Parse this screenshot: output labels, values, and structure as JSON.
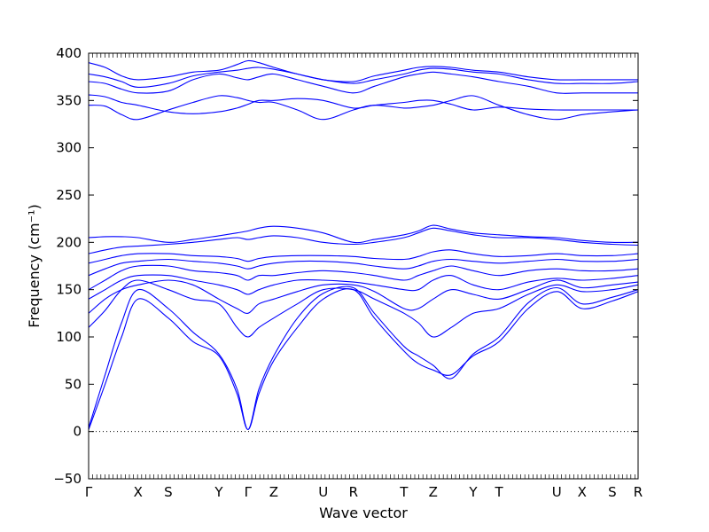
{
  "chart_data": {
    "type": "line",
    "title": "",
    "xlabel": "Wave vector",
    "ylabel": "Frequency (cm⁻¹)",
    "ylim": [
      -50,
      400
    ],
    "yticks": [
      -50,
      0,
      50,
      100,
      150,
      200,
      250,
      300,
      350,
      400
    ],
    "grid": false,
    "legend": "none",
    "line_color": "#0000ff",
    "zero_line": {
      "y": 0,
      "style": "dotted",
      "color": "#000000"
    },
    "xticks": [
      {
        "label": "Γ",
        "pos": 0.0
      },
      {
        "label": "X",
        "pos": 0.09
      },
      {
        "label": "S",
        "pos": 0.145
      },
      {
        "label": "Y",
        "pos": 0.237
      },
      {
        "label": "Γ",
        "pos": 0.29
      },
      {
        "label": "Z",
        "pos": 0.337
      },
      {
        "label": "U",
        "pos": 0.427
      },
      {
        "label": "R",
        "pos": 0.482
      },
      {
        "label": "T",
        "pos": 0.574
      },
      {
        "label": "Z",
        "pos": 0.627
      },
      {
        "label": "Y",
        "pos": 0.7
      },
      {
        "label": "T",
        "pos": 0.747
      },
      {
        "label": "U",
        "pos": 0.852
      },
      {
        "label": "X",
        "pos": 0.898
      },
      {
        "label": "S",
        "pos": 0.953
      },
      {
        "label": "R",
        "pos": 1.0
      }
    ],
    "series": [
      {
        "x": [
          0,
          0.03,
          0.06,
          0.09,
          0.145,
          0.19,
          0.237,
          0.27,
          0.29,
          0.31,
          0.337,
          0.38,
          0.427,
          0.482,
          0.52,
          0.574,
          0.6,
          0.627,
          0.66,
          0.7,
          0.747,
          0.8,
          0.852,
          0.898,
          0.953,
          1.0
        ],
        "y": [
          2,
          50,
          100,
          140,
          120,
          95,
          80,
          40,
          2,
          40,
          75,
          110,
          140,
          150,
          120,
          85,
          72,
          65,
          60,
          80,
          95,
          130,
          148,
          130,
          138,
          148
        ]
      },
      {
        "x": [
          0,
          0.03,
          0.06,
          0.09,
          0.145,
          0.19,
          0.237,
          0.27,
          0.29,
          0.31,
          0.337,
          0.38,
          0.427,
          0.482,
          0.52,
          0.574,
          0.6,
          0.627,
          0.66,
          0.7,
          0.747,
          0.8,
          0.852,
          0.898,
          0.953,
          1.0
        ],
        "y": [
          4,
          60,
          115,
          150,
          130,
          105,
          82,
          45,
          2,
          45,
          80,
          120,
          146,
          152,
          125,
          90,
          80,
          70,
          56,
          82,
          100,
          136,
          152,
          135,
          142,
          150
        ]
      },
      {
        "x": [
          0,
          0.03,
          0.06,
          0.09,
          0.145,
          0.19,
          0.237,
          0.27,
          0.29,
          0.31,
          0.337,
          0.38,
          0.427,
          0.482,
          0.52,
          0.574,
          0.6,
          0.627,
          0.66,
          0.7,
          0.747,
          0.8,
          0.852,
          0.898,
          0.953,
          1.0
        ],
        "y": [
          110,
          128,
          150,
          160,
          150,
          140,
          135,
          110,
          100,
          110,
          120,
          135,
          150,
          150,
          140,
          125,
          115,
          100,
          110,
          125,
          130,
          145,
          155,
          148,
          150,
          155
        ]
      },
      {
        "x": [
          0,
          0.03,
          0.06,
          0.09,
          0.145,
          0.19,
          0.237,
          0.27,
          0.29,
          0.31,
          0.337,
          0.38,
          0.427,
          0.482,
          0.52,
          0.574,
          0.6,
          0.627,
          0.66,
          0.7,
          0.747,
          0.8,
          0.852,
          0.898,
          0.953,
          1.0
        ],
        "y": [
          125,
          140,
          150,
          155,
          160,
          155,
          140,
          130,
          125,
          135,
          140,
          148,
          155,
          155,
          148,
          130,
          130,
          140,
          150,
          145,
          140,
          150,
          160,
          152,
          155,
          158
        ]
      },
      {
        "x": [
          0,
          0.03,
          0.06,
          0.09,
          0.145,
          0.19,
          0.237,
          0.27,
          0.29,
          0.31,
          0.337,
          0.38,
          0.427,
          0.482,
          0.52,
          0.574,
          0.6,
          0.627,
          0.66,
          0.7,
          0.747,
          0.8,
          0.852,
          0.898,
          0.953,
          1.0
        ],
        "y": [
          140,
          150,
          160,
          165,
          165,
          160,
          155,
          150,
          145,
          150,
          155,
          160,
          160,
          158,
          155,
          150,
          150,
          160,
          165,
          155,
          150,
          158,
          162,
          160,
          162,
          165
        ]
      },
      {
        "x": [
          0,
          0.03,
          0.06,
          0.09,
          0.145,
          0.19,
          0.237,
          0.27,
          0.29,
          0.31,
          0.337,
          0.38,
          0.427,
          0.482,
          0.52,
          0.574,
          0.6,
          0.627,
          0.66,
          0.7,
          0.747,
          0.8,
          0.852,
          0.898,
          0.953,
          1.0
        ],
        "y": [
          150,
          160,
          170,
          175,
          175,
          170,
          168,
          165,
          160,
          165,
          165,
          168,
          170,
          168,
          165,
          160,
          165,
          170,
          175,
          170,
          165,
          170,
          172,
          170,
          170,
          172
        ]
      },
      {
        "x": [
          0,
          0.03,
          0.06,
          0.09,
          0.145,
          0.19,
          0.237,
          0.27,
          0.29,
          0.31,
          0.337,
          0.38,
          0.427,
          0.482,
          0.52,
          0.574,
          0.6,
          0.627,
          0.66,
          0.7,
          0.747,
          0.8,
          0.852,
          0.898,
          0.953,
          1.0
        ],
        "y": [
          165,
          172,
          178,
          180,
          182,
          180,
          178,
          175,
          172,
          175,
          178,
          180,
          180,
          178,
          175,
          172,
          175,
          180,
          182,
          180,
          178,
          180,
          182,
          180,
          180,
          182
        ]
      },
      {
        "x": [
          0,
          0.03,
          0.06,
          0.09,
          0.145,
          0.19,
          0.237,
          0.27,
          0.29,
          0.31,
          0.337,
          0.38,
          0.427,
          0.482,
          0.52,
          0.574,
          0.6,
          0.627,
          0.66,
          0.7,
          0.747,
          0.8,
          0.852,
          0.898,
          0.953,
          1.0
        ],
        "y": [
          178,
          182,
          186,
          188,
          188,
          186,
          185,
          183,
          180,
          183,
          185,
          186,
          186,
          185,
          183,
          182,
          185,
          190,
          192,
          188,
          185,
          186,
          188,
          186,
          186,
          188
        ]
      },
      {
        "x": [
          0,
          0.03,
          0.06,
          0.09,
          0.145,
          0.19,
          0.237,
          0.27,
          0.29,
          0.31,
          0.337,
          0.38,
          0.427,
          0.482,
          0.52,
          0.574,
          0.6,
          0.627,
          0.66,
          0.7,
          0.747,
          0.8,
          0.852,
          0.898,
          0.953,
          1.0
        ],
        "y": [
          188,
          192,
          195,
          196,
          198,
          200,
          203,
          205,
          203,
          205,
          207,
          205,
          200,
          198,
          200,
          205,
          210,
          215,
          212,
          208,
          205,
          205,
          203,
          200,
          198,
          197
        ]
      },
      {
        "x": [
          0,
          0.03,
          0.06,
          0.09,
          0.145,
          0.19,
          0.237,
          0.27,
          0.29,
          0.31,
          0.337,
          0.38,
          0.427,
          0.482,
          0.52,
          0.574,
          0.6,
          0.627,
          0.66,
          0.7,
          0.747,
          0.8,
          0.852,
          0.898,
          0.953,
          1.0
        ],
        "y": [
          205,
          206,
          206,
          205,
          200,
          203,
          207,
          210,
          212,
          215,
          217,
          215,
          210,
          200,
          203,
          208,
          212,
          218,
          214,
          210,
          208,
          206,
          205,
          202,
          200,
          200
        ]
      },
      {
        "x": [
          0,
          0.03,
          0.06,
          0.09,
          0.145,
          0.19,
          0.237,
          0.27,
          0.29,
          0.31,
          0.337,
          0.38,
          0.427,
          0.482,
          0.52,
          0.574,
          0.6,
          0.627,
          0.66,
          0.7,
          0.747,
          0.8,
          0.852,
          0.898,
          0.953,
          1.0
        ],
        "y": [
          345,
          344,
          335,
          330,
          340,
          348,
          355,
          353,
          350,
          348,
          348,
          340,
          330,
          340,
          345,
          342,
          343,
          345,
          350,
          355,
          345,
          335,
          330,
          335,
          338,
          340
        ]
      },
      {
        "x": [
          0,
          0.03,
          0.06,
          0.09,
          0.145,
          0.19,
          0.237,
          0.27,
          0.29,
          0.31,
          0.337,
          0.38,
          0.427,
          0.482,
          0.52,
          0.574,
          0.6,
          0.627,
          0.66,
          0.7,
          0.747,
          0.8,
          0.852,
          0.898,
          0.953,
          1.0
        ],
        "y": [
          356,
          354,
          348,
          345,
          338,
          336,
          338,
          342,
          346,
          350,
          350,
          352,
          350,
          342,
          345,
          348,
          350,
          350,
          346,
          340,
          343,
          341,
          340,
          340,
          340,
          340
        ]
      },
      {
        "x": [
          0,
          0.03,
          0.06,
          0.09,
          0.145,
          0.19,
          0.237,
          0.27,
          0.29,
          0.31,
          0.337,
          0.38,
          0.427,
          0.482,
          0.52,
          0.574,
          0.6,
          0.627,
          0.66,
          0.7,
          0.747,
          0.8,
          0.852,
          0.898,
          0.953,
          1.0
        ],
        "y": [
          370,
          368,
          362,
          358,
          360,
          372,
          378,
          374,
          372,
          375,
          378,
          372,
          365,
          358,
          365,
          375,
          378,
          380,
          378,
          375,
          370,
          365,
          358,
          358,
          358,
          358
        ]
      },
      {
        "x": [
          0,
          0.03,
          0.06,
          0.09,
          0.145,
          0.19,
          0.237,
          0.27,
          0.29,
          0.31,
          0.337,
          0.38,
          0.427,
          0.482,
          0.52,
          0.574,
          0.6,
          0.627,
          0.66,
          0.7,
          0.747,
          0.8,
          0.852,
          0.898,
          0.953,
          1.0
        ],
        "y": [
          378,
          375,
          370,
          364,
          368,
          376,
          380,
          382,
          384,
          385,
          383,
          378,
          372,
          368,
          372,
          378,
          382,
          384,
          383,
          380,
          378,
          372,
          368,
          368,
          368,
          370
        ]
      },
      {
        "x": [
          0,
          0.03,
          0.06,
          0.09,
          0.145,
          0.19,
          0.237,
          0.27,
          0.29,
          0.31,
          0.337,
          0.38,
          0.427,
          0.482,
          0.52,
          0.574,
          0.6,
          0.627,
          0.66,
          0.7,
          0.747,
          0.8,
          0.852,
          0.898,
          0.953,
          1.0
        ],
        "y": [
          390,
          385,
          376,
          372,
          375,
          380,
          382,
          388,
          392,
          390,
          385,
          378,
          372,
          370,
          376,
          382,
          385,
          386,
          385,
          382,
          380,
          375,
          372,
          372,
          372,
          372
        ]
      }
    ]
  }
}
